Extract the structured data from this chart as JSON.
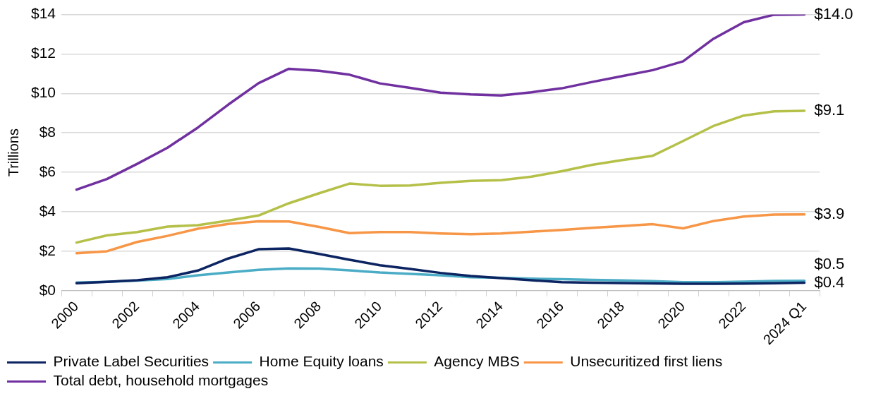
{
  "chart_data": {
    "type": "line",
    "ylabel": "Trillions",
    "categories": [
      "2000",
      null,
      "2002",
      null,
      "2004",
      null,
      "2006",
      null,
      "2008",
      null,
      "2010",
      null,
      "2012",
      null,
      "2014",
      null,
      "2016",
      null,
      "2018",
      null,
      "2020",
      null,
      "2022",
      null,
      "2024 Q1"
    ],
    "series": [
      {
        "name": "Private Label Securities",
        "color": "#0c2461",
        "values": [
          0.38,
          0.45,
          0.53,
          0.68,
          1.02,
          1.63,
          2.1,
          2.14,
          1.86,
          1.57,
          1.29,
          1.1,
          0.9,
          0.74,
          0.64,
          0.53,
          0.43,
          0.4,
          0.39,
          0.37,
          0.35,
          0.35,
          0.36,
          0.38,
          0.4
        ],
        "value_labels": [
          null,
          null,
          null,
          null,
          null,
          null,
          null,
          null,
          null,
          null,
          null,
          null,
          null,
          null,
          null,
          null,
          null,
          null,
          null,
          null,
          null,
          null,
          null,
          null,
          "$0.4"
        ]
      },
      {
        "name": "Home Equity loans",
        "color": "#4bacc6",
        "values": [
          0.41,
          0.45,
          0.51,
          0.59,
          0.78,
          0.92,
          1.06,
          1.13,
          1.12,
          1.03,
          0.92,
          0.85,
          0.78,
          0.68,
          0.65,
          0.61,
          0.58,
          0.55,
          0.52,
          0.48,
          0.43,
          0.43,
          0.46,
          0.49,
          0.5
        ],
        "value_labels": [
          null,
          null,
          null,
          null,
          null,
          null,
          null,
          null,
          null,
          null,
          null,
          null,
          null,
          null,
          null,
          null,
          null,
          null,
          null,
          null,
          null,
          null,
          null,
          null,
          "$0.5"
        ]
      },
      {
        "name": "Agency MBS",
        "color": "#b5c048",
        "values": [
          2.44,
          2.8,
          2.97,
          3.25,
          3.32,
          3.55,
          3.81,
          4.43,
          4.94,
          5.43,
          5.32,
          5.33,
          5.47,
          5.57,
          5.6,
          5.78,
          6.06,
          6.38,
          6.62,
          6.84,
          7.59,
          8.35,
          8.88,
          9.09,
          9.12
        ],
        "value_labels": [
          null,
          null,
          null,
          null,
          null,
          null,
          null,
          null,
          null,
          null,
          null,
          null,
          null,
          null,
          null,
          null,
          null,
          null,
          null,
          null,
          null,
          null,
          null,
          null,
          "$9.1"
        ]
      },
      {
        "name": "Unsecuritized first liens",
        "color": "#f79646",
        "values": [
          1.9,
          2.0,
          2.47,
          2.78,
          3.14,
          3.38,
          3.52,
          3.51,
          3.23,
          2.92,
          2.97,
          2.97,
          2.9,
          2.86,
          2.9,
          2.99,
          3.08,
          3.19,
          3.28,
          3.37,
          3.16,
          3.53,
          3.76,
          3.86,
          3.87
        ],
        "value_labels": [
          null,
          null,
          null,
          null,
          null,
          null,
          null,
          null,
          null,
          null,
          null,
          null,
          null,
          null,
          null,
          null,
          null,
          null,
          null,
          null,
          null,
          null,
          null,
          null,
          "$3.9"
        ]
      },
      {
        "name": "Total debt, household mortgages",
        "color": "#7030a0",
        "values": [
          5.12,
          5.66,
          6.43,
          7.25,
          8.27,
          9.43,
          10.52,
          11.25,
          11.15,
          10.95,
          10.51,
          10.28,
          10.04,
          9.95,
          9.9,
          10.06,
          10.26,
          10.58,
          10.88,
          11.18,
          11.63,
          12.77,
          13.61,
          13.99,
          14.0
        ],
        "value_labels": [
          null,
          null,
          null,
          null,
          null,
          null,
          null,
          null,
          null,
          null,
          null,
          null,
          null,
          null,
          null,
          null,
          null,
          null,
          null,
          null,
          null,
          null,
          null,
          null,
          "$14.0"
        ]
      }
    ],
    "ylim": [
      0,
      14
    ],
    "yticks": [
      {
        "value": 0,
        "label": "$0"
      },
      {
        "value": 2,
        "label": "$2"
      },
      {
        "value": 4,
        "label": "$4"
      },
      {
        "value": 6,
        "label": "$6"
      },
      {
        "value": 8,
        "label": "$8"
      },
      {
        "value": 10,
        "label": "$10"
      },
      {
        "value": 12,
        "label": "$12"
      },
      {
        "value": 14,
        "label": "$14"
      }
    ],
    "grid": "y",
    "legend": "bottom",
    "marker": "none",
    "line_style": "solid"
  }
}
